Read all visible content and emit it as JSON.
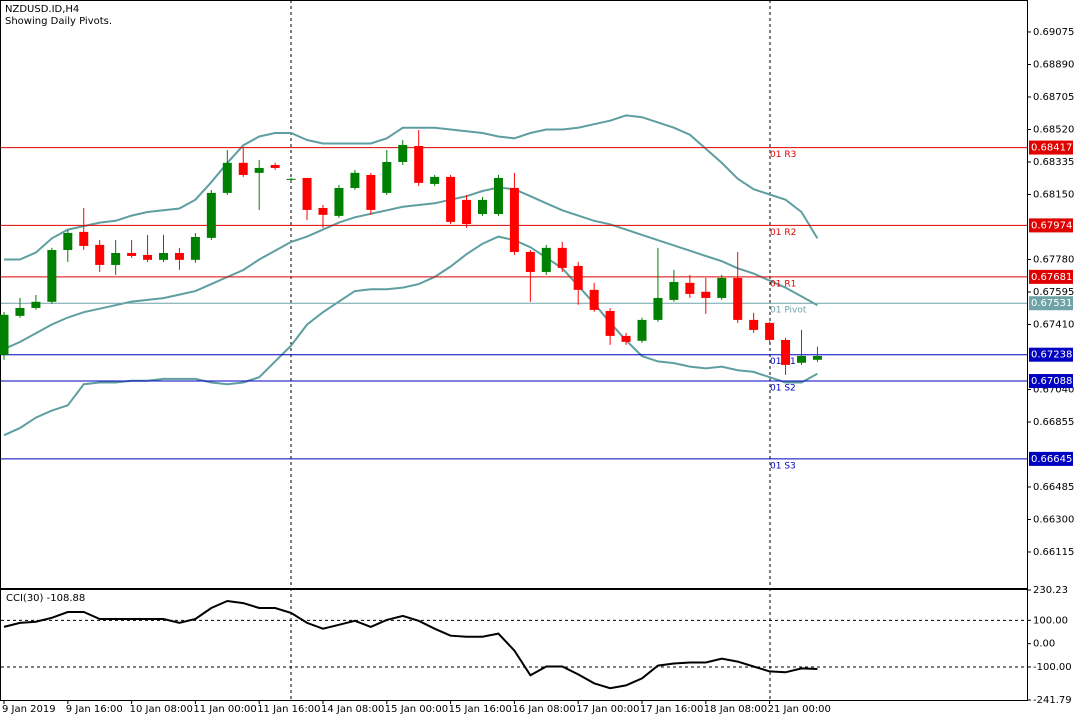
{
  "chart_data": [
    {
      "type": "candlestick",
      "title": "NZDUSD.ID,H4",
      "subtitle": "Showing Daily Pivots.",
      "categories": [
        "9 Jan 2019",
        null,
        null,
        null,
        "9 Jan 16:00",
        null,
        null,
        null,
        "10 Jan 08:00",
        null,
        null,
        null,
        "11 Jan 00:00",
        null,
        null,
        null,
        "11 Jan 16:00",
        null,
        null,
        null,
        "14 Jan 08:00",
        null,
        null,
        null,
        "15 Jan 00:00",
        null,
        null,
        null,
        "15 Jan 16:00",
        null,
        null,
        null,
        "16 Jan 08:00",
        null,
        null,
        null,
        "17 Jan 00:00",
        null,
        null,
        null,
        "17 Jan 16:00",
        null,
        null,
        null,
        "18 Jan 08:00",
        null,
        null,
        null,
        "21 Jan 00:00",
        null,
        null,
        null
      ],
      "open": [
        0.67237,
        0.67459,
        0.67504,
        0.67539,
        0.67834,
        0.67937,
        0.67863,
        0.67749,
        0.67817,
        0.67806,
        0.67778,
        0.67817,
        0.67778,
        0.67903,
        0.68159,
        0.6833,
        0.68273,
        0.68318,
        0.68233,
        0.68244,
        0.68073,
        0.68028,
        0.68187,
        0.68261,
        0.68159,
        0.68335,
        0.68426,
        0.6821,
        0.6825,
        0.68119,
        0.68039,
        0.68039,
        0.68187,
        0.67823,
        0.67709,
        0.67846,
        0.67743,
        0.67607,
        0.67487,
        0.67345,
        0.67317,
        0.67436,
        0.6755,
        0.67647,
        0.67596,
        0.67561,
        0.67675,
        0.67436,
        0.67419,
        0.67322,
        0.67192,
        0.67209
      ],
      "high": [
        0.67482,
        0.67561,
        0.67578,
        0.67846,
        0.67948,
        0.68073,
        0.67891,
        0.67891,
        0.67891,
        0.6792,
        0.6792,
        0.67846,
        0.67931,
        0.68176,
        0.68403,
        0.68415,
        0.68347,
        0.6833,
        0.68244,
        0.68244,
        0.68091,
        0.68204,
        0.6829,
        0.68273,
        0.68403,
        0.6846,
        0.68517,
        0.68261,
        0.68261,
        0.68147,
        0.68136,
        0.68261,
        0.68273,
        0.67834,
        0.67863,
        0.6788,
        0.67766,
        0.67647,
        0.67504,
        0.67362,
        0.67448,
        0.67846,
        0.67721,
        0.67692,
        0.67675,
        0.67692,
        0.67823,
        0.67476,
        0.67425,
        0.67334,
        0.67379,
        0.67283
      ],
      "low": [
        0.67209,
        0.67448,
        0.67493,
        0.67527,
        0.67766,
        0.67834,
        0.67709,
        0.67692,
        0.67789,
        0.67766,
        0.67766,
        0.67721,
        0.67761,
        0.67891,
        0.68147,
        0.6825,
        0.68062,
        0.6829,
        0.68227,
        0.68005,
        0.6796,
        0.68017,
        0.68176,
        0.68034,
        0.68147,
        0.68318,
        0.68199,
        0.68199,
        0.67982,
        0.6796,
        0.68028,
        0.68028,
        0.67806,
        0.67539,
        0.67692,
        0.67709,
        0.67522,
        0.67482,
        0.67294,
        0.67294,
        0.67305,
        0.67425,
        0.67539,
        0.67561,
        0.6747,
        0.6755,
        0.67419,
        0.67362,
        0.67305,
        0.67123,
        0.6718,
        0.67197
      ],
      "close": [
        0.67465,
        0.67504,
        0.67539,
        0.67834,
        0.67931,
        0.67857,
        0.67749,
        0.67817,
        0.678,
        0.67778,
        0.67817,
        0.67778,
        0.67908,
        0.68159,
        0.6833,
        0.68261,
        0.68301,
        0.68301,
        0.68239,
        0.68062,
        0.68034,
        0.68187,
        0.68273,
        0.68062,
        0.68335,
        0.68432,
        0.68216,
        0.6825,
        0.67994,
        0.67982,
        0.68119,
        0.68244,
        0.67823,
        0.67709,
        0.67846,
        0.67732,
        0.67607,
        0.67493,
        0.67345,
        0.67311,
        0.67436,
        0.67561,
        0.67652,
        0.67584,
        0.67561,
        0.67675,
        0.67436,
        0.67379,
        0.67322,
        0.6718,
        0.67231,
        0.67231
      ],
      "up_color": "#008000",
      "down_color": "#ff0000",
      "series": [
        {
          "color": "#5f9ea0",
          "values": [
            0.6778,
            0.6778,
            0.6782,
            0.679,
            0.6795,
            0.6797,
            0.6799,
            0.68,
            0.6803,
            0.6805,
            0.6806,
            0.6807,
            0.6812,
            0.6822,
            0.6833,
            0.6843,
            0.6848,
            0.685,
            0.685,
            0.6846,
            0.6844,
            0.6844,
            0.6844,
            0.6844,
            0.6847,
            0.6853,
            0.6853,
            0.6853,
            0.6852,
            0.6851,
            0.685,
            0.6848,
            0.6847,
            0.685,
            0.6852,
            0.6852,
            0.6853,
            0.6855,
            0.6857,
            0.686,
            0.6859,
            0.6856,
            0.6853,
            0.6849,
            0.6841,
            0.6833,
            0.6824,
            0.6818,
            0.6815,
            0.6812,
            0.6805,
            0.679
          ]
        },
        {
          "color": "#5f9ea0",
          "values": [
            0.6727,
            0.6731,
            0.6736,
            0.6741,
            0.6745,
            0.6748,
            0.675,
            0.6752,
            0.6754,
            0.6755,
            0.6756,
            0.6758,
            0.676,
            0.6764,
            0.6768,
            0.6772,
            0.6778,
            0.6783,
            0.6788,
            0.6791,
            0.6795,
            0.6799,
            0.6802,
            0.6804,
            0.6806,
            0.6808,
            0.6809,
            0.681,
            0.6812,
            0.6814,
            0.6817,
            0.6819,
            0.6818,
            0.6814,
            0.681,
            0.6806,
            0.6803,
            0.68,
            0.6798,
            0.6795,
            0.6792,
            0.6789,
            0.6786,
            0.6783,
            0.678,
            0.6777,
            0.6773,
            0.677,
            0.6766,
            0.6762,
            0.6757,
            0.6752
          ]
        },
        {
          "color": "#5f9ea0",
          "values": [
            0.6678,
            0.6682,
            0.6688,
            0.6692,
            0.6695,
            0.6707,
            0.6708,
            0.6708,
            0.6709,
            0.6709,
            0.671,
            0.671,
            0.671,
            0.6708,
            0.6707,
            0.6708,
            0.6711,
            0.672,
            0.6729,
            0.6741,
            0.6748,
            0.6754,
            0.676,
            0.6761,
            0.6761,
            0.6762,
            0.6764,
            0.6768,
            0.6774,
            0.6781,
            0.6787,
            0.6791,
            0.6789,
            0.6785,
            0.6779,
            0.6773,
            0.6763,
            0.6753,
            0.6742,
            0.6732,
            0.6723,
            0.672,
            0.6719,
            0.6717,
            0.6716,
            0.6717,
            0.6715,
            0.6714,
            0.6711,
            0.6708,
            0.6708,
            0.6713
          ]
        }
      ],
      "levels": [
        {
          "name": "01 R3",
          "value": 0.68417,
          "color": "#e00000"
        },
        {
          "name": "01 R2",
          "value": 0.67974,
          "color": "#e00000"
        },
        {
          "name": "01 R1",
          "value": 0.67681,
          "color": "#e00000"
        },
        {
          "name": "01 Pivot",
          "value": 0.67531,
          "color": "#6fa3a8"
        },
        {
          "name": "01 S1",
          "value": 0.67238,
          "color": "#0000c0"
        },
        {
          "name": "01 S2",
          "value": 0.67088,
          "color": "#0000c0"
        },
        {
          "name": "01 S3",
          "value": 0.66645,
          "color": "#0000c0"
        }
      ],
      "ylim": [
        0.6591,
        0.69257
      ],
      "yticks": [
        0.69075,
        {
          "value": 0.6889,
          "label": "0.68890"
        },
        0.68705,
        {
          "value": 0.6852,
          "label": "0.68520"
        },
        0.68335,
        {
          "value": 0.6815,
          "label": "0.68150"
        },
        {
          "value": 0.6778,
          "label": "0.67780"
        },
        0.67595,
        {
          "value": 0.6741,
          "label": "0.67410"
        },
        {
          "value": 0.6704,
          "label": "0.67040"
        },
        0.66855,
        0.66485,
        {
          "value": 0.663,
          "label": "0.66300"
        },
        0.66115
      ]
    },
    {
      "type": "line",
      "title": "CCI(30) -108.88",
      "color": "#000000",
      "values": [
        72,
        89,
        94,
        111,
        136,
        136,
        106,
        106,
        106,
        106,
        106,
        89,
        106,
        153,
        183,
        174,
        153,
        153,
        132,
        89,
        64,
        81,
        98,
        72,
        102,
        119,
        98,
        64,
        34,
        30,
        30,
        43,
        -30,
        -136,
        -98,
        -98,
        -132,
        -170,
        -191,
        -179,
        -149,
        -94,
        -85,
        -81,
        -81,
        -64,
        -77,
        -98,
        -119,
        -123,
        -106,
        -108.88
      ],
      "level_lines": [
        100,
        -100
      ],
      "ylim": [
        -241.79,
        230.23
      ],
      "yticks": [
        230.23,
        {
          "value": 100,
          "label": "100.00"
        },
        {
          "value": 0,
          "label": "0.00"
        },
        {
          "value": -100,
          "label": "-100.00"
        },
        -241.79
      ]
    }
  ]
}
